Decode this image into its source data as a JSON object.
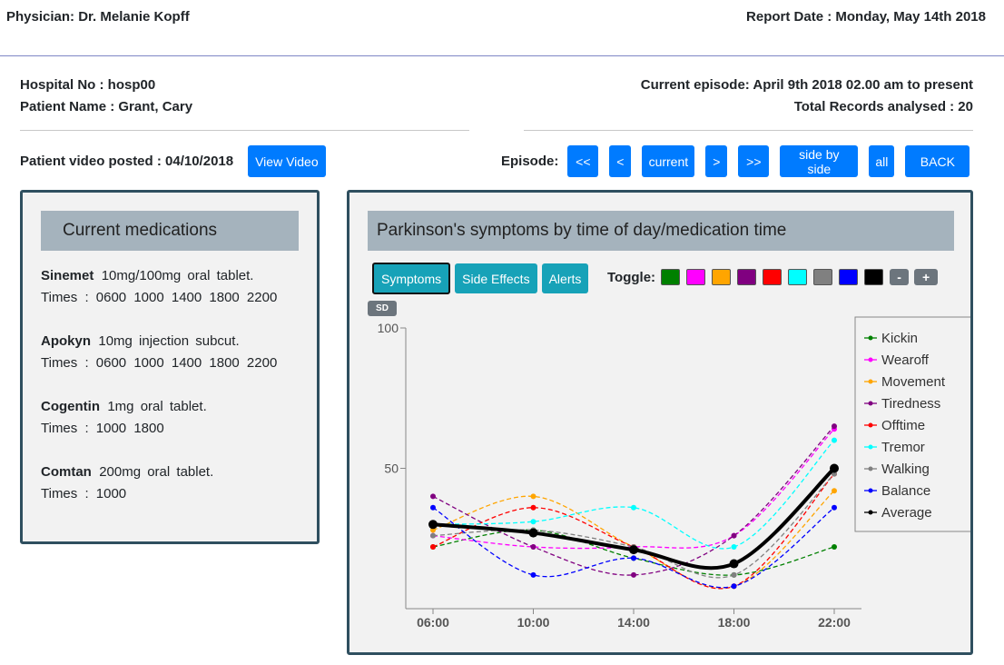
{
  "header": {
    "physician": "Physician: Dr. Melanie Kopff",
    "report_date": "Report Date : Monday, May 14th 2018"
  },
  "patient": {
    "hospital_no": "Hospital No : hosp00",
    "name": "Patient Name : Grant, Cary",
    "current_episode": "Current episode: April 9th 2018 02.00 am to present",
    "total_records": "Total Records analysed : 20"
  },
  "video": {
    "label": "Patient video posted : 04/10/2018",
    "button": "View Video"
  },
  "episode_nav": {
    "label": "Episode:",
    "buttons": [
      "<<",
      "<",
      "current",
      ">",
      ">>",
      "side by side",
      "all",
      "BACK"
    ]
  },
  "medications": {
    "title": "Current medications",
    "items": [
      {
        "name": "Sinemet",
        "desc": "10mg/100mg oral tablet.",
        "times": "Times : 0600 1000 1400 1800 2200"
      },
      {
        "name": "Apokyn",
        "desc": "10mg injection subcut.",
        "times": "Times : 0600 1000 1400 1800 2200"
      },
      {
        "name": "Cogentin",
        "desc": "1mg oral tablet.",
        "times": "Times : 1000 1800"
      },
      {
        "name": "Comtan",
        "desc": "200mg oral tablet.",
        "times": "Times : 1000"
      }
    ]
  },
  "chart_panel": {
    "title": "Parkinson's symptoms by time of day/medication time",
    "tabs": [
      "Symptoms",
      "Side Effects",
      "Alerts"
    ],
    "active_tab": "Symptoms",
    "toggle_label": "Toggle:",
    "toggle_colors": [
      "#008000",
      "#ff00ff",
      "#ffa500",
      "#800080",
      "#ff0000",
      "#00ffff",
      "#808080",
      "#0000ff",
      "#000000"
    ],
    "minus_label": "-",
    "plus_label": "+",
    "sd_label": "SD"
  },
  "chart_data": {
    "type": "line",
    "x": [
      "06:00",
      "10:00",
      "14:00",
      "18:00",
      "22:00"
    ],
    "yticks": [
      100,
      50
    ],
    "ylim": [
      0,
      100
    ],
    "legend_position": "right",
    "series": [
      {
        "name": "Kickin",
        "color": "#008000",
        "values": [
          22,
          28,
          18,
          12,
          22
        ]
      },
      {
        "name": "Wearoff",
        "color": "#ff00ff",
        "values": [
          26,
          22,
          22,
          26,
          64
        ]
      },
      {
        "name": "Movement",
        "color": "#ffa500",
        "values": [
          28,
          40,
          22,
          8,
          42
        ]
      },
      {
        "name": "Tiredness",
        "color": "#800080",
        "values": [
          40,
          22,
          12,
          26,
          65
        ]
      },
      {
        "name": "Offtime",
        "color": "#ff0000",
        "values": [
          22,
          36,
          22,
          8,
          48
        ]
      },
      {
        "name": "Tremor",
        "color": "#00ffff",
        "values": [
          30,
          31,
          36,
          22,
          60
        ]
      },
      {
        "name": "Walking",
        "color": "#808080",
        "values": [
          26,
          28,
          22,
          12,
          48
        ]
      },
      {
        "name": "Balance",
        "color": "#0000ff",
        "values": [
          36,
          12,
          18,
          8,
          36
        ]
      },
      {
        "name": "Average",
        "color": "#000000",
        "values": [
          30,
          27,
          21,
          16,
          50
        ]
      }
    ]
  }
}
